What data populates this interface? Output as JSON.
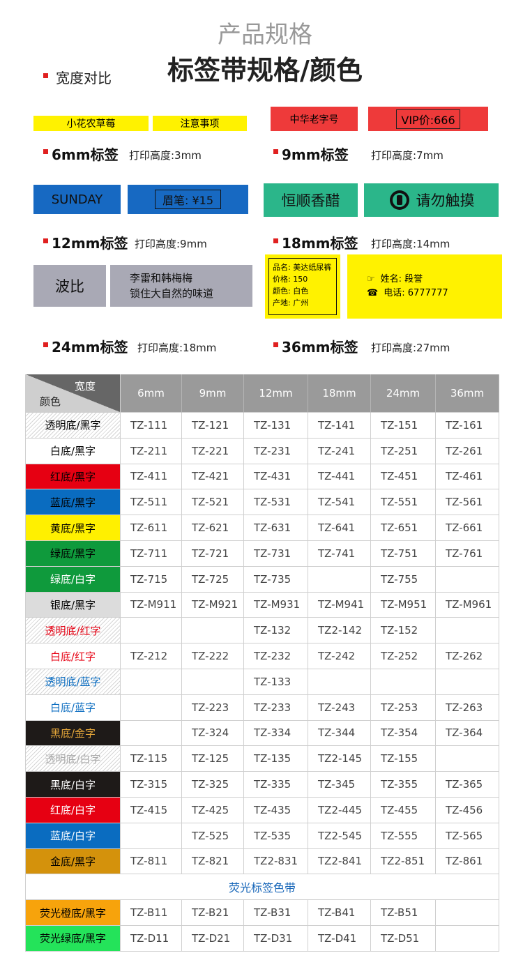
{
  "header": {
    "title": "产品规格",
    "subtitle": "标签带规格/颜色"
  },
  "section_label": "宽度对比",
  "samples": [
    {
      "name": "6mm标签",
      "print_height": "打印高度:3mm",
      "tapes": [
        [
          "小花农草莓"
        ],
        [
          "注意事项"
        ]
      ]
    },
    {
      "name": "9mm标签",
      "print_height": "打印高度:7mm",
      "tapes": [
        [
          "中华老字号"
        ],
        [
          "VIP价:666"
        ]
      ]
    },
    {
      "name": "12mm标签",
      "print_height": "打印高度:9mm",
      "tapes": [
        [
          "SUNDAY"
        ],
        [
          "眉笔: ¥15"
        ]
      ]
    },
    {
      "name": "18mm标签",
      "print_height": "打印高度:14mm",
      "tapes": [
        [
          "恒顺香醋"
        ],
        [
          "请勿触摸"
        ]
      ]
    },
    {
      "name": "24mm标签",
      "print_height": "打印高度:18mm",
      "tapes": [
        [
          "波比"
        ],
        [
          "李雷和韩梅梅",
          "锁住大自然的味道"
        ]
      ]
    },
    {
      "name": "36mm标签",
      "print_height": "打印高度:27mm",
      "tapes": [
        [
          "品名: 美达纸尿裤",
          "价格: 150",
          "颜色: 白色",
          "产地: 广州"
        ],
        [
          "姓名: 段誉",
          "电话: 6777777"
        ]
      ]
    }
  ],
  "table": {
    "corner_top": "宽度",
    "corner_bottom": "颜色",
    "columns": [
      "6mm",
      "9mm",
      "12mm",
      "18mm",
      "24mm",
      "36mm"
    ],
    "rows": [
      {
        "label": "透明底/黑字",
        "swatch": "transparent",
        "text_color": "#000",
        "codes": [
          "TZ-111",
          "TZ-121",
          "TZ-131",
          "TZ-141",
          "TZ-151",
          "TZ-161"
        ]
      },
      {
        "label": "白底/黑字",
        "swatch": "#ffffff",
        "text_color": "#000",
        "codes": [
          "TZ-211",
          "TZ-221",
          "TZ-231",
          "TZ-241",
          "TZ-251",
          "TZ-261"
        ]
      },
      {
        "label": "红底/黑字",
        "swatch": "#e60012",
        "text_color": "#000",
        "codes": [
          "TZ-411",
          "TZ-421",
          "TZ-431",
          "TZ-441",
          "TZ-451",
          "TZ-461"
        ]
      },
      {
        "label": "蓝底/黑字",
        "swatch": "#0a6cc0",
        "text_color": "#000",
        "codes": [
          "TZ-511",
          "TZ-521",
          "TZ-531",
          "TZ-541",
          "TZ-551",
          "TZ-561"
        ]
      },
      {
        "label": "黄底/黑字",
        "swatch": "#fff000",
        "text_color": "#000",
        "codes": [
          "TZ-611",
          "TZ-621",
          "TZ-631",
          "TZ-641",
          "TZ-651",
          "TZ-661"
        ]
      },
      {
        "label": "绿底/黑字",
        "swatch": "#0f9a3c",
        "text_color": "#000",
        "codes": [
          "TZ-711",
          "TZ-721",
          "TZ-731",
          "TZ-741",
          "TZ-751",
          "TZ-761"
        ]
      },
      {
        "label": "绿底/白字",
        "swatch": "#0f9a3c",
        "text_color": "#fff",
        "codes": [
          "TZ-715",
          "TZ-725",
          "TZ-735",
          null,
          "TZ-755",
          null
        ]
      },
      {
        "label": "银底/黑字",
        "swatch": "#dcdcdc",
        "text_color": "#000",
        "codes": [
          "TZ-M911",
          "TZ-M921",
          "TZ-M931",
          "TZ-M941",
          "TZ-M951",
          "TZ-M961"
        ]
      },
      {
        "label": "透明底/红字",
        "swatch": "transparent",
        "text_color": "#e60012",
        "codes": [
          null,
          null,
          "TZ-132",
          "TZ2-142",
          "TZ-152",
          null
        ]
      },
      {
        "label": "白底/红字",
        "swatch": "#ffffff",
        "text_color": "#e60012",
        "codes": [
          "TZ-212",
          "TZ-222",
          "TZ-232",
          "TZ-242",
          "TZ-252",
          "TZ-262"
        ]
      },
      {
        "label": "透明底/蓝字",
        "swatch": "transparent",
        "text_color": "#0a6cc0",
        "codes": [
          null,
          null,
          "TZ-133",
          null,
          null,
          null
        ]
      },
      {
        "label": "白底/蓝字",
        "swatch": "#ffffff",
        "text_color": "#0a6cc0",
        "codes": [
          null,
          "TZ-223",
          "TZ-233",
          "TZ-243",
          "TZ-253",
          "TZ-263"
        ]
      },
      {
        "label": "黑底/金字",
        "swatch": "#1e1a18",
        "text_color": "#e8a93a",
        "codes": [
          null,
          "TZ-324",
          "TZ-334",
          "TZ-344",
          "TZ-354",
          "TZ-364"
        ]
      },
      {
        "label": "透明底/白字",
        "swatch": "transparent",
        "text_color": "#aaaaaa",
        "codes": [
          "TZ-115",
          "TZ-125",
          "TZ-135",
          "TZ2-145",
          "TZ-155",
          null
        ]
      },
      {
        "label": "黑底/白字",
        "swatch": "#1e1a18",
        "text_color": "#fff",
        "codes": [
          "TZ-315",
          "TZ-325",
          "TZ-335",
          "TZ-345",
          "TZ-355",
          "TZ-365"
        ]
      },
      {
        "label": "红底/白字",
        "swatch": "#e60012",
        "text_color": "#fff",
        "codes": [
          "TZ-415",
          "TZ-425",
          "TZ-435",
          "TZ2-445",
          "TZ-455",
          "TZ-456"
        ]
      },
      {
        "label": "蓝底/白字",
        "swatch": "#0a6cc0",
        "text_color": "#fff",
        "codes": [
          null,
          "TZ-525",
          "TZ-535",
          "TZ2-545",
          "TZ-555",
          "TZ-565"
        ]
      },
      {
        "label": "金底/黑字",
        "swatch": "#d4920c",
        "text_color": "#000",
        "codes": [
          "TZ-811",
          "TZ-821",
          "TZ2-831",
          "TZ2-841",
          "TZ2-851",
          "TZ-861"
        ]
      }
    ],
    "fluorescent": {
      "title": "荧光标签色带",
      "rows": [
        {
          "label": "荧光橙底/黑字",
          "swatch": "#f7a30c",
          "text_color": "#000",
          "codes": [
            "TZ-B11",
            "TZ-B21",
            "TZ-B31",
            "TZ-B41",
            "TZ-B51",
            null
          ]
        },
        {
          "label": "荧光绿底/黑字",
          "swatch": "#24e35a",
          "text_color": "#000",
          "codes": [
            "TZ-D11",
            "TZ-D21",
            "TZ-D31",
            "TZ-D41",
            "TZ-D51",
            null
          ]
        }
      ]
    }
  }
}
